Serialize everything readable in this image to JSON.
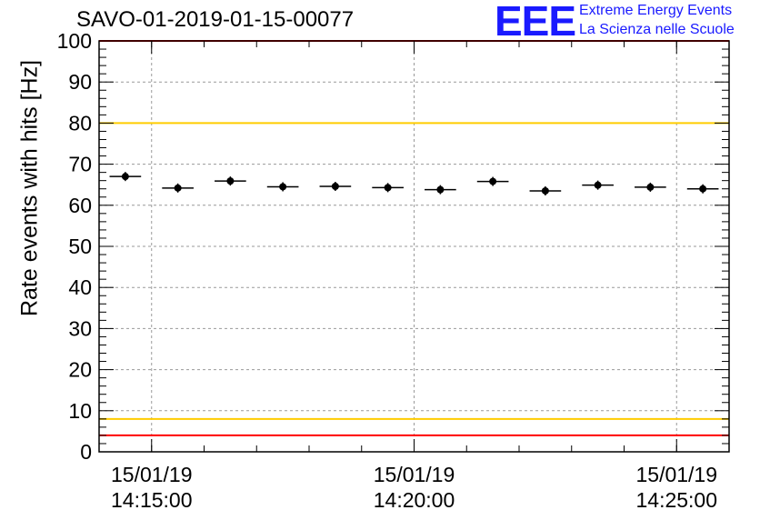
{
  "header": {
    "title": "SAVO-01-2019-01-15-00077",
    "logo_mark": "EEE",
    "logo_line1": "Extreme Energy Events",
    "logo_line2": "La Scienza nelle Scuole"
  },
  "colors": {
    "accent": "#1a1aff",
    "threshold_red": "#ff0000",
    "threshold_yellow": "#ffcc00",
    "grid": "#999999",
    "marker": "#000000"
  },
  "chart_data": {
    "type": "scatter",
    "title": "SAVO-01-2019-01-15-00077",
    "xlabel": "",
    "ylabel": "Rate events with hits [Hz]",
    "ylim": [
      0,
      100
    ],
    "xlim": [
      "2019-01-15 14:14:00",
      "2019-01-15 14:26:00"
    ],
    "yticks": [
      0,
      10,
      20,
      30,
      40,
      50,
      60,
      70,
      80,
      90,
      100
    ],
    "xticks": [
      {
        "x": "2019-01-15 14:15:00",
        "date": "15/01/19",
        "time": "14:15:00"
      },
      {
        "x": "2019-01-15 14:20:00",
        "date": "15/01/19",
        "time": "14:20:00"
      },
      {
        "x": "2019-01-15 14:25:00",
        "date": "15/01/19",
        "time": "14:25:00"
      }
    ],
    "grid": true,
    "error_bars": "horizontal (bin width ~36 s)",
    "points": [
      {
        "x": "2019-01-15 14:14:30",
        "y": 67.0
      },
      {
        "x": "2019-01-15 14:15:30",
        "y": 64.2
      },
      {
        "x": "2019-01-15 14:16:30",
        "y": 65.9
      },
      {
        "x": "2019-01-15 14:17:30",
        "y": 64.5
      },
      {
        "x": "2019-01-15 14:18:30",
        "y": 64.6
      },
      {
        "x": "2019-01-15 14:19:30",
        "y": 64.3
      },
      {
        "x": "2019-01-15 14:20:30",
        "y": 63.8
      },
      {
        "x": "2019-01-15 14:21:30",
        "y": 65.8
      },
      {
        "x": "2019-01-15 14:22:30",
        "y": 63.5
      },
      {
        "x": "2019-01-15 14:23:30",
        "y": 64.9
      },
      {
        "x": "2019-01-15 14:24:30",
        "y": 64.4
      },
      {
        "x": "2019-01-15 14:25:30",
        "y": 64.0
      }
    ],
    "reference_lines": [
      {
        "y": 100,
        "color": "#ff0000"
      },
      {
        "y": 80,
        "color": "#ffcc00"
      },
      {
        "y": 8,
        "color": "#ffcc00"
      },
      {
        "y": 4,
        "color": "#ff0000"
      }
    ]
  }
}
